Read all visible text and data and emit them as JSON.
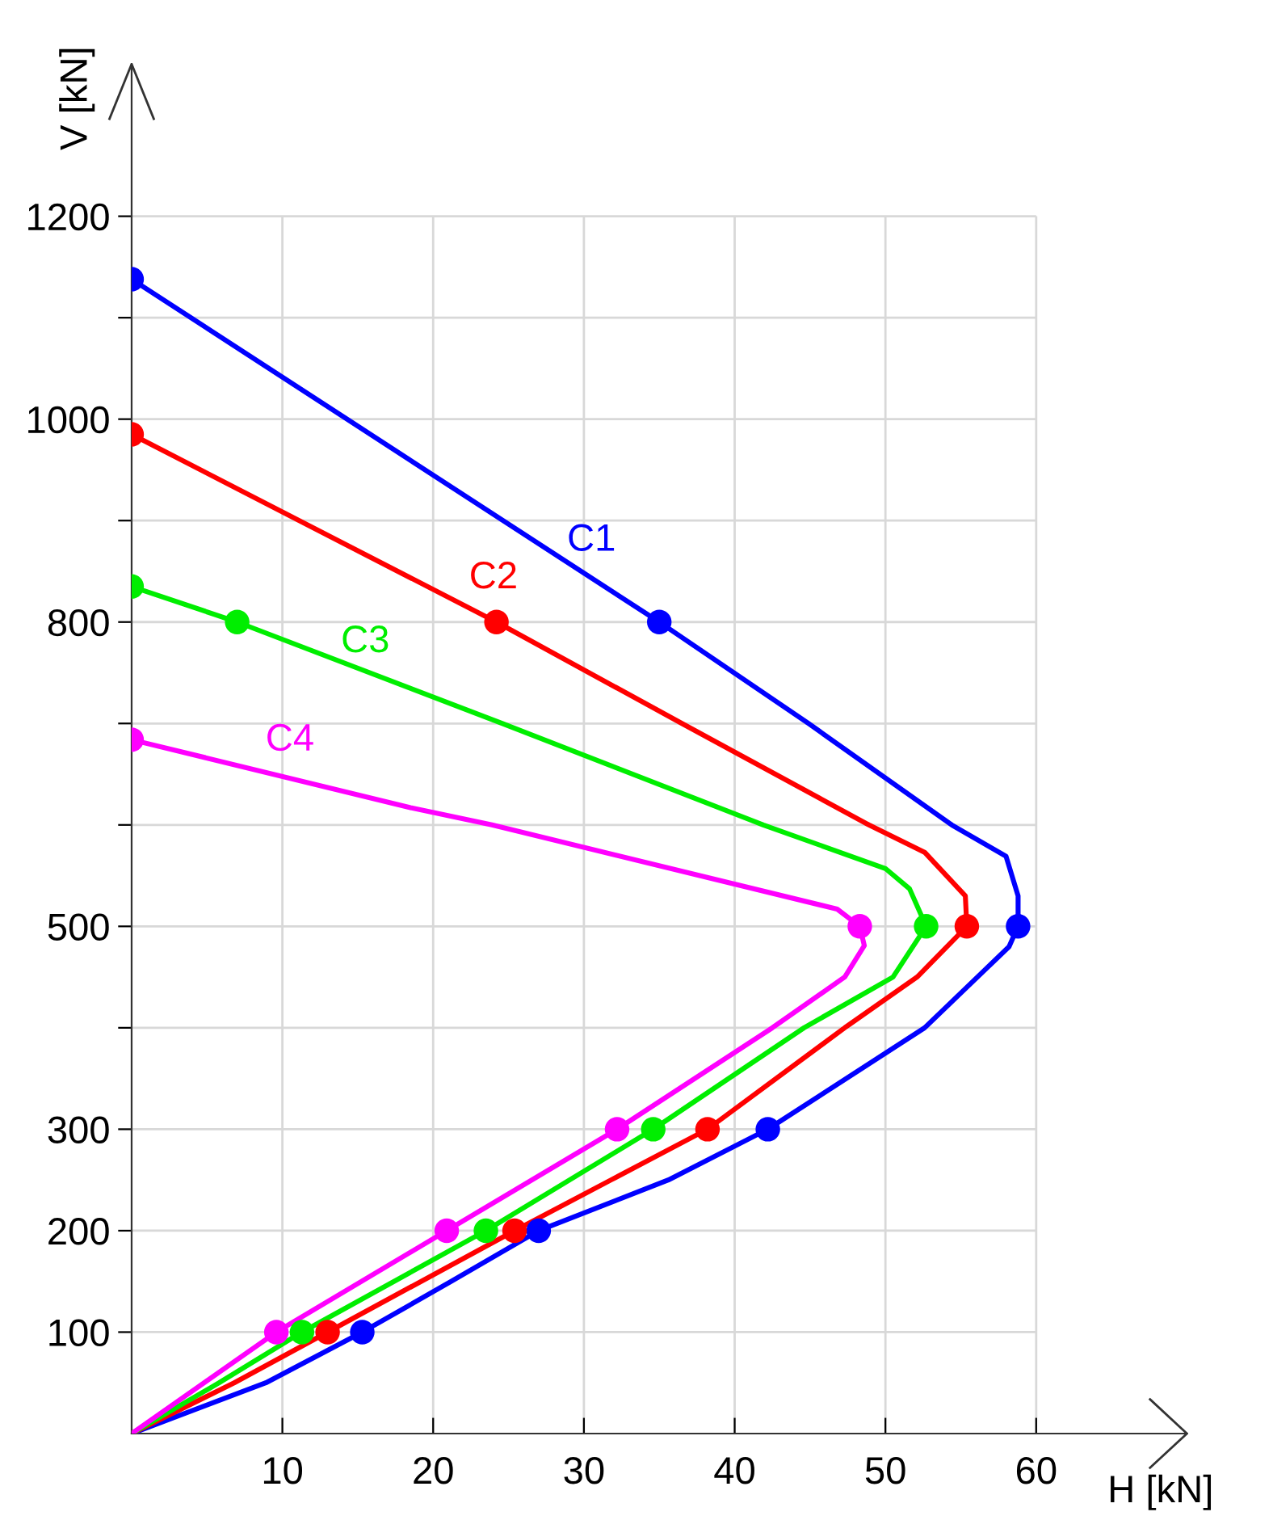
{
  "chart_data": {
    "type": "line",
    "xlabel": "H [kN]",
    "ylabel": "V [kN]",
    "xlim": [
      0,
      70
    ],
    "ylim": [
      0,
      1350
    ],
    "xticks": [
      10,
      20,
      30,
      40,
      50,
      60
    ],
    "yticks": [
      100,
      200,
      300,
      {
        "value": 400,
        "label": null
      },
      500,
      {
        "value": 600,
        "label": null
      },
      {
        "value": 700,
        "label": null
      },
      800,
      {
        "value": 900,
        "label": null
      },
      1000,
      {
        "value": 1100,
        "label": null
      },
      1200
    ],
    "grid": true,
    "legend": false,
    "series": [
      {
        "name": "C1",
        "color": "#0000ff",
        "marker": "none",
        "x": [
          0,
          35,
          44.9,
          54.4,
          58,
          58.8,
          58.8,
          58.2,
          56.1,
          52.6,
          42.2,
          35.6,
          27,
          21.2,
          15.3,
          8.9,
          0
        ],
        "values": [
          1138,
          800,
          700,
          600,
          569,
          530,
          500,
          480,
          450,
          400,
          300,
          250,
          200,
          150,
          100,
          50,
          0
        ]
      },
      {
        "name": "C2",
        "color": "#ff0000",
        "marker": "none",
        "x": [
          0,
          24.2,
          36.5,
          48.9,
          52.6,
          55.3,
          55.4,
          52.1,
          47.3,
          38.2,
          31.8,
          25.4,
          13,
          6.8,
          0
        ],
        "values": [
          985,
          800,
          700,
          600,
          573,
          530,
          500,
          450,
          400,
          300,
          250,
          200,
          100,
          50,
          0
        ]
      },
      {
        "name": "C3",
        "color": "#00ee00",
        "marker": "none",
        "x": [
          0,
          7,
          24.6,
          41.9,
          50,
          51.6,
          52.7,
          50.5,
          44.6,
          34.6,
          23.5,
          11.3,
          5.8,
          0
        ],
        "values": [
          835,
          800,
          700,
          600,
          557,
          537,
          500,
          450,
          400,
          300,
          200,
          100,
          50,
          0
        ]
      },
      {
        "name": "C4",
        "color": "#ff00ff",
        "marker": "none",
        "x": [
          0,
          18.5,
          23.9,
          46.8,
          48.3,
          48.6,
          47.3,
          42.5,
          32.2,
          20.9,
          9.6,
          4.8,
          0
        ],
        "values": [
          684,
          617,
          600,
          517,
          500,
          481,
          450,
          400,
          300,
          200,
          100,
          50,
          0
        ]
      },
      {
        "color": "#0000ff",
        "type": "scatter",
        "marker": "circle",
        "x": [
          0,
          35,
          58.8,
          42.2,
          27,
          15.3
        ],
        "values": [
          1138,
          800,
          500,
          300,
          200,
          100
        ]
      },
      {
        "color": "#ff0000",
        "type": "scatter",
        "marker": "circle",
        "x": [
          0,
          24.2,
          55.4,
          38.2,
          25.4,
          13
        ],
        "values": [
          985,
          800,
          500,
          300,
          200,
          100
        ]
      },
      {
        "color": "#00ee00",
        "type": "scatter",
        "marker": "circle",
        "x": [
          0,
          7,
          52.7,
          34.6,
          23.5,
          11.3
        ],
        "values": [
          835,
          800,
          500,
          300,
          200,
          100
        ]
      },
      {
        "color": "#ff00ff",
        "type": "scatter",
        "marker": "circle",
        "x": [
          0,
          48.3,
          32.2,
          20.9,
          9.6
        ],
        "values": [
          684,
          500,
          300,
          200,
          100
        ]
      }
    ]
  }
}
